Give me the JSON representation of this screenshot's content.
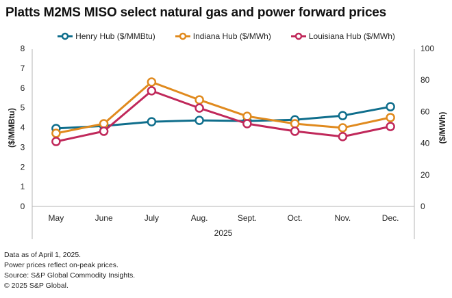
{
  "title": "Platts M2MS MISO select natural gas and power forward prices",
  "footnotes": [
    "Data as of April 1, 2025.",
    "Power prices reflect on-peak prices.",
    "Source: S&P Global Commodity Insights.",
    "© 2025 S&P Global."
  ],
  "chart_data": {
    "type": "line",
    "title": "Platts M2MS MISO select natural gas and power forward prices",
    "categories": [
      "May",
      "June",
      "July",
      "Aug.",
      "Sept.",
      "Oct.",
      "Nov.",
      "Dec."
    ],
    "xlabel": "2025",
    "ylabel_left": "($/MMBtu)",
    "ylabel_right": "($/MWh)",
    "ylim_left": [
      0,
      8
    ],
    "ylim_right": [
      0,
      100
    ],
    "yticks_left": [
      "0",
      "1",
      "2",
      "3",
      "4",
      "5",
      "6",
      "7",
      "8"
    ],
    "yticks_right": [
      "0",
      "20",
      "40",
      "60",
      "80",
      "100"
    ],
    "grid": false,
    "legend_position": "top-center",
    "series": [
      {
        "name": "Henry Hub ($/MMBtu)",
        "axis": "left",
        "color": "#0f6e8c",
        "values": [
          3.95,
          4.08,
          4.29,
          4.36,
          4.33,
          4.39,
          4.6,
          5.05
        ]
      },
      {
        "name": "Indiana Hub ($/MWh)",
        "axis": "right",
        "color": "#e08a1e",
        "values": [
          46.3,
          52.4,
          78.8,
          67.5,
          57.1,
          52.4,
          49.8,
          56.3
        ]
      },
      {
        "name": "Louisiana Hub ($/MWh)",
        "axis": "right",
        "color": "#c0285a",
        "values": [
          41.1,
          47.6,
          73.2,
          62.3,
          52.4,
          47.6,
          44.2,
          50.6
        ]
      }
    ]
  }
}
